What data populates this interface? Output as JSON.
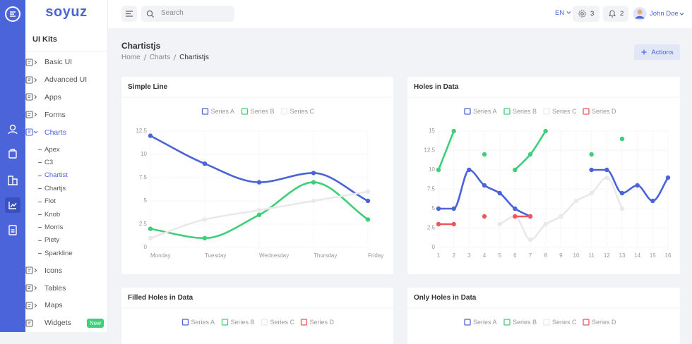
{
  "sidebar": {
    "logo": "soyuz",
    "section": "UI Kits",
    "menu": [
      {
        "label": "Basic UI"
      },
      {
        "label": "Advanced UI"
      },
      {
        "label": "Apps"
      },
      {
        "label": "Forms"
      },
      {
        "label": "Charts",
        "active": true,
        "children": [
          {
            "label": "Apex"
          },
          {
            "label": "C3"
          },
          {
            "label": "Chartist",
            "active": true
          },
          {
            "label": "Chartjs"
          },
          {
            "label": "Flot"
          },
          {
            "label": "Knob"
          },
          {
            "label": "Morris"
          },
          {
            "label": "Piety"
          },
          {
            "label": "Sparkline"
          }
        ]
      },
      {
        "label": "Icons"
      },
      {
        "label": "Tables"
      },
      {
        "label": "Maps"
      },
      {
        "label": "Widgets",
        "badge": "New"
      }
    ]
  },
  "topbar": {
    "search": "Search",
    "language": "EN",
    "settings_count": 3,
    "notifications": 2,
    "user": "John Doe"
  },
  "header": {
    "title": "Chartistjs",
    "breadcrumb": [
      "Home",
      "Charts",
      "Chartistjs"
    ],
    "action": "Actions"
  },
  "chart_data": [
    {
      "type": "line",
      "title": "Simple Line",
      "categories": [
        "Monday",
        "Tuesday",
        "Wednesday",
        "Thursday",
        "Friday"
      ],
      "series": [
        {
          "name": "Series A",
          "color": "#4a63d8",
          "values": [
            12,
            9,
            7,
            8,
            5
          ]
        },
        {
          "name": "Series B",
          "color": "#3ecf7a",
          "values": [
            2,
            1,
            3.5,
            7,
            3
          ]
        },
        {
          "name": "Series C",
          "color": "#e9e9ec",
          "values": [
            1,
            3,
            4,
            5,
            6
          ]
        }
      ],
      "ylim": [
        0,
        12.5
      ],
      "yticks": [
        0,
        2.5,
        5,
        7.5,
        10,
        12.5
      ],
      "grid": true
    },
    {
      "type": "line",
      "title": "Holes in Data",
      "categories": [
        "1",
        "2",
        "3",
        "4",
        "5",
        "6",
        "7",
        "8",
        "9",
        "10",
        "11",
        "12",
        "13",
        "14",
        "15",
        "16"
      ],
      "series": [
        {
          "name": "Series A",
          "color": "#4a63d8",
          "values": [
            5,
            5,
            10,
            8,
            7,
            5,
            4,
            null,
            null,
            null,
            10,
            10,
            7,
            8,
            6,
            9
          ]
        },
        {
          "name": "Series B",
          "color": "#3ecf7a",
          "values": [
            10,
            15,
            null,
            12,
            null,
            10,
            12,
            15,
            null,
            null,
            12,
            null,
            14,
            null,
            null,
            null
          ]
        },
        {
          "name": "Series C",
          "color": "#e9e9ec",
          "values": [
            null,
            null,
            null,
            null,
            3,
            4,
            1,
            3,
            4,
            6,
            7,
            9,
            5,
            null,
            null,
            null
          ]
        },
        {
          "name": "Series D",
          "color": "#f0555e",
          "values": [
            3,
            3,
            null,
            4,
            null,
            4,
            4,
            null,
            null,
            null,
            null,
            null,
            null,
            null,
            null,
            null
          ]
        }
      ],
      "ylim": [
        0,
        15
      ],
      "yticks": [
        0,
        2.5,
        5,
        7.5,
        10,
        12.5,
        15
      ],
      "grid": true
    },
    {
      "type": "line",
      "title": "Filled Holes in Data",
      "series": [
        {
          "name": "Series A",
          "color": "#4a63d8"
        },
        {
          "name": "Series B",
          "color": "#3ecf7a"
        },
        {
          "name": "Series C",
          "color": "#e9e9ec"
        },
        {
          "name": "Series D",
          "color": "#f0555e"
        }
      ]
    },
    {
      "type": "line",
      "title": "Only Holes in Data",
      "series": [
        {
          "name": "Series A",
          "color": "#4a63d8"
        },
        {
          "name": "Series B",
          "color": "#3ecf7a"
        },
        {
          "name": "Series C",
          "color": "#e9e9ec"
        },
        {
          "name": "Series D",
          "color": "#f0555e"
        }
      ]
    }
  ]
}
